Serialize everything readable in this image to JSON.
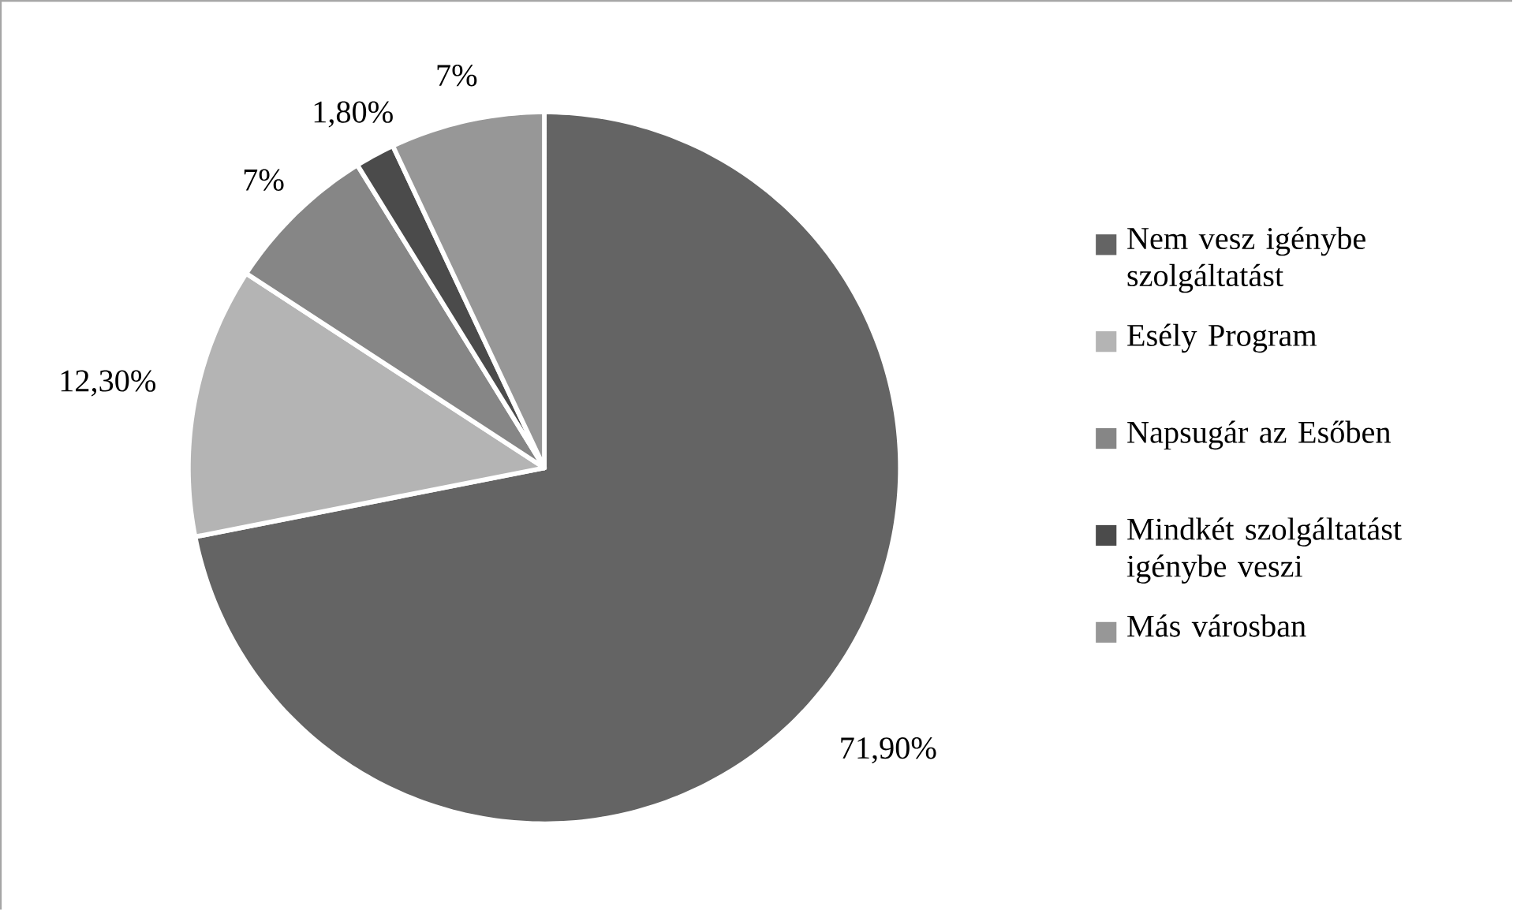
{
  "chart_data": {
    "type": "pie",
    "categories": [
      "Nem vesz igénybe szolgáltatást",
      "Esély Program",
      "Napsugár az Esőben",
      "Mindkét szolgáltatást igénybe veszi",
      "Más városban"
    ],
    "values": [
      71.9,
      12.3,
      7,
      1.8,
      7
    ],
    "value_labels": [
      "71,90%",
      "12,30%",
      "7%",
      "1,80%",
      "7%"
    ],
    "colors": [
      "#646464",
      "#b4b4b4",
      "#868686",
      "#4b4b4b",
      "#979797"
    ],
    "legend": "right"
  }
}
